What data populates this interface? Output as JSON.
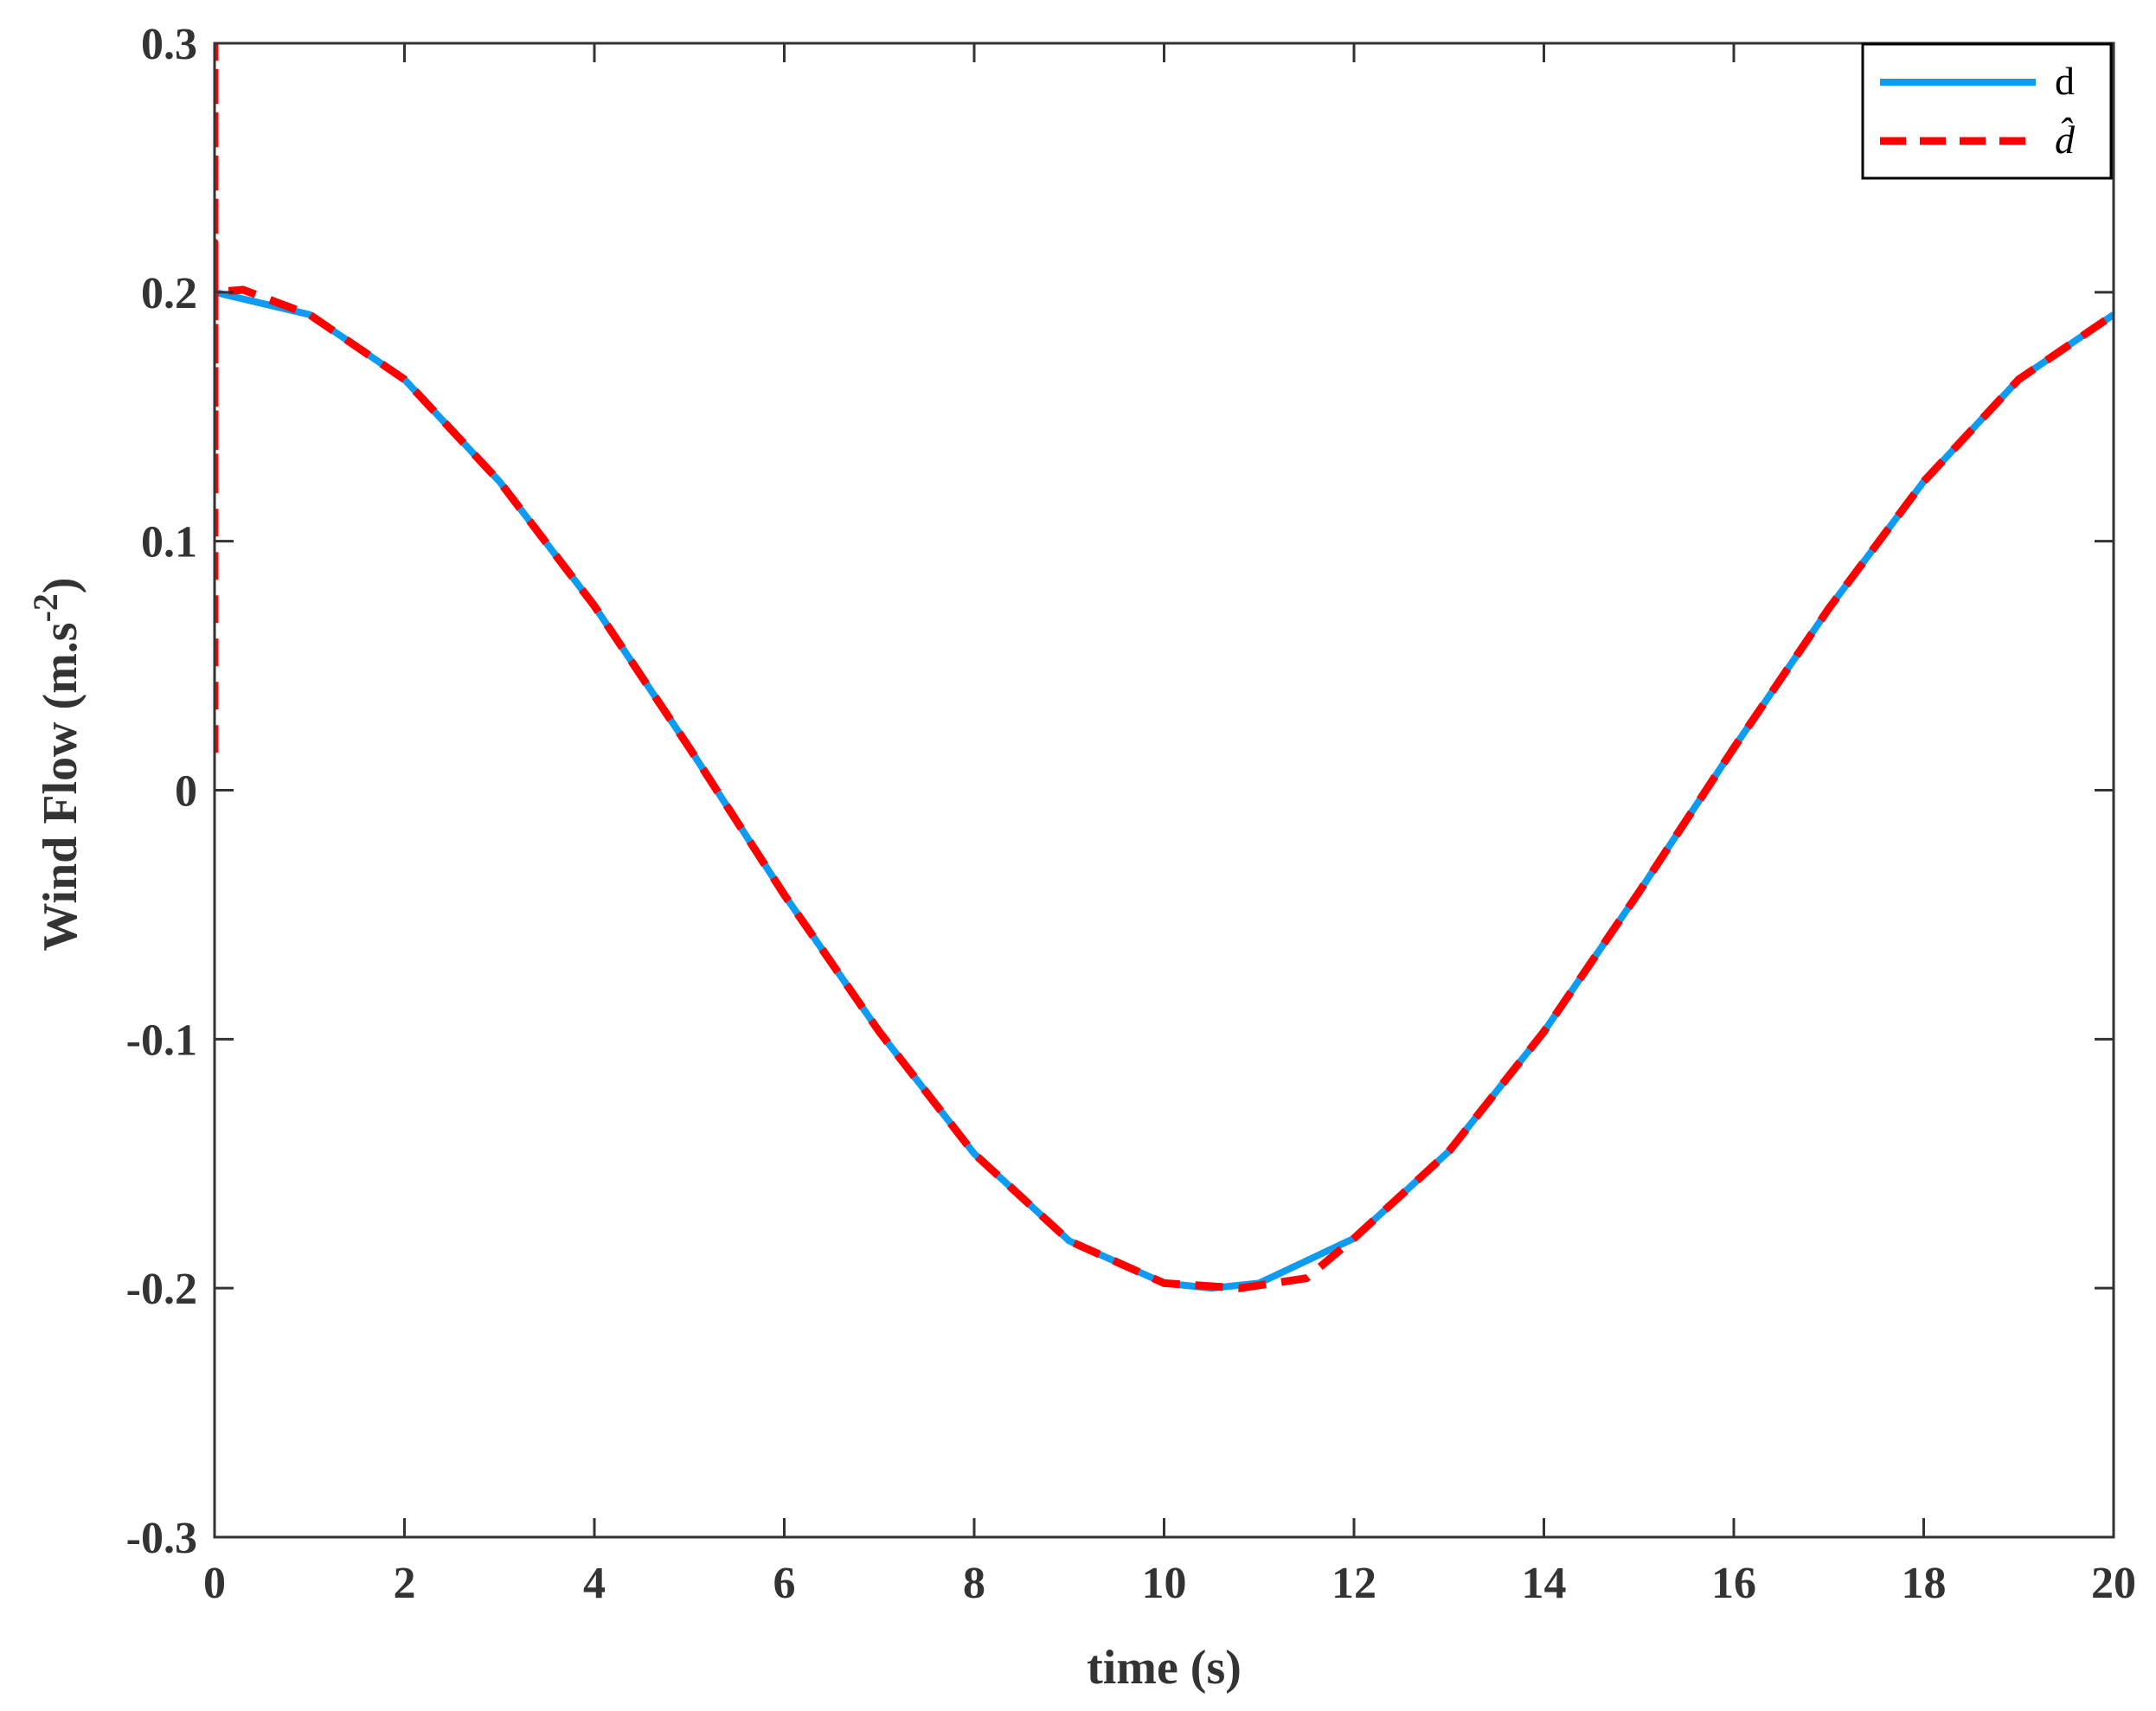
{
  "chart_data": {
    "type": "line",
    "xlabel": "time (s)",
    "ylabel_main": "Wind Flow (m.s",
    "ylabel_sup": "-2",
    "ylabel_tail": ")",
    "xlim": [
      0,
      20
    ],
    "ylim": [
      -0.3,
      0.3
    ],
    "xticks": [
      0,
      2,
      4,
      6,
      8,
      10,
      12,
      14,
      16,
      18,
      20
    ],
    "xtick_labels": [
      "0",
      "2",
      "4",
      "6",
      "8",
      "10",
      "12",
      "14",
      "16",
      "18",
      "20"
    ],
    "yticks": [
      0.3,
      0.2,
      0.1,
      0,
      -0.1,
      -0.2,
      -0.3
    ],
    "ytick_labels": [
      "0.3",
      "0.2",
      "0.1",
      "0",
      "-0.1",
      "-0.2",
      "-0.3"
    ],
    "grid": false,
    "legend_position": "top-right",
    "legend": [
      {
        "label": "d",
        "color": "#0f9bf0",
        "style": "solid"
      },
      {
        "label": "d̂",
        "color": "#ff0000",
        "style": "dashed"
      }
    ],
    "series": [
      {
        "name": "d",
        "color": "#0f9bf0",
        "style": "solid",
        "x": [
          0,
          1,
          2,
          3,
          4,
          5,
          6,
          7,
          8,
          9,
          10,
          10.5,
          11,
          12,
          13,
          14,
          15,
          16,
          17,
          18,
          19,
          20
        ],
        "y": [
          0.2,
          0.191,
          0.165,
          0.124,
          0.074,
          0.017,
          -0.042,
          -0.097,
          -0.146,
          -0.181,
          -0.198,
          -0.2,
          -0.198,
          -0.18,
          -0.145,
          -0.097,
          -0.041,
          0.017,
          0.073,
          0.124,
          0.165,
          0.191
        ]
      },
      {
        "name": "d̂",
        "color": "#ff0000",
        "style": "dashed",
        "x": [
          0,
          0,
          0,
          0,
          0,
          0.3,
          1,
          2,
          3,
          4,
          5,
          6,
          7,
          8,
          9,
          10,
          10.8,
          11.5,
          12,
          13,
          14,
          15,
          16,
          17,
          18,
          19,
          20
        ],
        "y": [
          0.015,
          0.3,
          0.12,
          0.22,
          0.2,
          0.201,
          0.191,
          0.165,
          0.124,
          0.074,
          0.017,
          -0.042,
          -0.097,
          -0.146,
          -0.181,
          -0.198,
          -0.2,
          -0.196,
          -0.18,
          -0.145,
          -0.097,
          -0.041,
          0.017,
          0.073,
          0.124,
          0.165,
          0.191
        ]
      }
    ]
  },
  "colors": {
    "axis": "#333333",
    "d_line": "#0f9bf0",
    "dhat_line": "#ff0000"
  }
}
